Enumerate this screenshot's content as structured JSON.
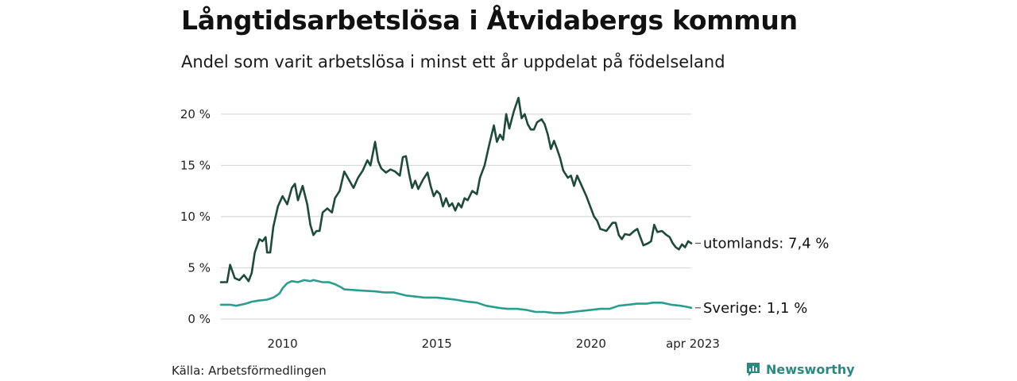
{
  "chart_data": {
    "type": "line",
    "title": "Långtidsarbetslösa i Åtvidabergs kommun",
    "subtitle": "Andel som varit arbetslösa i minst ett år uppdelat på födelseland",
    "xlabel": "",
    "ylabel": "",
    "ylim": [
      0,
      22
    ],
    "yticks": [
      0,
      5,
      10,
      15,
      20
    ],
    "ytick_labels": [
      "0 %",
      "5 %",
      "10 %",
      "15 %",
      "20 %"
    ],
    "xlim": [
      2008.0,
      2023.25
    ],
    "xticks": [
      2010,
      2015,
      2020,
      2023.25
    ],
    "xtick_labels": [
      "2010",
      "2015",
      "2020",
      "apr 2023"
    ],
    "grid": true,
    "series": [
      {
        "name": "utomlands",
        "end_label": "utomlands: 7,4 %",
        "color": "#1d4a3a",
        "points": [
          [
            2008.0,
            3.6
          ],
          [
            2008.2,
            3.6
          ],
          [
            2008.3,
            5.3
          ],
          [
            2008.45,
            4.0
          ],
          [
            2008.6,
            3.8
          ],
          [
            2008.75,
            4.3
          ],
          [
            2008.9,
            3.7
          ],
          [
            2009.0,
            4.5
          ],
          [
            2009.1,
            6.5
          ],
          [
            2009.25,
            7.8
          ],
          [
            2009.35,
            7.6
          ],
          [
            2009.45,
            8.0
          ],
          [
            2009.5,
            6.5
          ],
          [
            2009.6,
            6.5
          ],
          [
            2009.7,
            9.0
          ],
          [
            2009.85,
            11.0
          ],
          [
            2010.0,
            12.0
          ],
          [
            2010.15,
            11.2
          ],
          [
            2010.3,
            12.8
          ],
          [
            2010.4,
            13.2
          ],
          [
            2010.5,
            11.6
          ],
          [
            2010.65,
            13.0
          ],
          [
            2010.8,
            11.2
          ],
          [
            2010.9,
            9.2
          ],
          [
            2011.0,
            8.2
          ],
          [
            2011.1,
            8.6
          ],
          [
            2011.2,
            8.6
          ],
          [
            2011.3,
            10.4
          ],
          [
            2011.45,
            10.8
          ],
          [
            2011.6,
            10.4
          ],
          [
            2011.7,
            11.8
          ],
          [
            2011.85,
            12.5
          ],
          [
            2012.0,
            14.4
          ],
          [
            2012.15,
            13.6
          ],
          [
            2012.3,
            12.8
          ],
          [
            2012.45,
            13.8
          ],
          [
            2012.6,
            14.5
          ],
          [
            2012.75,
            15.5
          ],
          [
            2012.85,
            15.0
          ],
          [
            2013.0,
            17.3
          ],
          [
            2013.1,
            15.4
          ],
          [
            2013.2,
            14.7
          ],
          [
            2013.35,
            14.3
          ],
          [
            2013.5,
            14.6
          ],
          [
            2013.65,
            14.4
          ],
          [
            2013.8,
            14.0
          ],
          [
            2013.9,
            15.8
          ],
          [
            2014.0,
            15.9
          ],
          [
            2014.1,
            14.2
          ],
          [
            2014.2,
            12.8
          ],
          [
            2014.3,
            13.5
          ],
          [
            2014.4,
            12.7
          ],
          [
            2014.55,
            13.6
          ],
          [
            2014.7,
            14.3
          ],
          [
            2014.8,
            13.0
          ],
          [
            2014.9,
            12.0
          ],
          [
            2015.0,
            12.5
          ],
          [
            2015.1,
            12.2
          ],
          [
            2015.2,
            11.0
          ],
          [
            2015.3,
            11.8
          ],
          [
            2015.4,
            11.0
          ],
          [
            2015.5,
            11.3
          ],
          [
            2015.6,
            10.6
          ],
          [
            2015.7,
            11.3
          ],
          [
            2015.8,
            10.9
          ],
          [
            2015.9,
            11.8
          ],
          [
            2016.0,
            11.6
          ],
          [
            2016.15,
            12.5
          ],
          [
            2016.3,
            12.2
          ],
          [
            2016.4,
            13.8
          ],
          [
            2016.55,
            15.0
          ],
          [
            2016.7,
            17.0
          ],
          [
            2016.85,
            18.9
          ],
          [
            2016.95,
            17.3
          ],
          [
            2017.05,
            18.0
          ],
          [
            2017.15,
            17.5
          ],
          [
            2017.25,
            20.0
          ],
          [
            2017.35,
            18.6
          ],
          [
            2017.5,
            20.3
          ],
          [
            2017.65,
            21.6
          ],
          [
            2017.75,
            19.6
          ],
          [
            2017.85,
            20.0
          ],
          [
            2017.95,
            19.0
          ],
          [
            2018.05,
            18.5
          ],
          [
            2018.15,
            18.5
          ],
          [
            2018.25,
            19.2
          ],
          [
            2018.4,
            19.5
          ],
          [
            2018.5,
            19.0
          ],
          [
            2018.6,
            18.0
          ],
          [
            2018.7,
            16.6
          ],
          [
            2018.8,
            17.4
          ],
          [
            2018.9,
            16.6
          ],
          [
            2019.0,
            15.7
          ],
          [
            2019.1,
            14.5
          ],
          [
            2019.25,
            13.8
          ],
          [
            2019.35,
            14.0
          ],
          [
            2019.45,
            13.0
          ],
          [
            2019.55,
            14.0
          ],
          [
            2019.7,
            13.0
          ],
          [
            2019.85,
            12.0
          ],
          [
            2020.0,
            10.8
          ],
          [
            2020.1,
            10.0
          ],
          [
            2020.2,
            9.6
          ],
          [
            2020.3,
            8.8
          ],
          [
            2020.4,
            8.7
          ],
          [
            2020.5,
            8.6
          ],
          [
            2020.6,
            9.0
          ],
          [
            2020.7,
            9.4
          ],
          [
            2020.8,
            9.4
          ],
          [
            2020.9,
            8.2
          ],
          [
            2021.0,
            7.8
          ],
          [
            2021.1,
            8.3
          ],
          [
            2021.25,
            8.2
          ],
          [
            2021.4,
            8.6
          ],
          [
            2021.5,
            8.8
          ],
          [
            2021.6,
            8.0
          ],
          [
            2021.7,
            7.2
          ],
          [
            2021.85,
            7.4
          ],
          [
            2021.95,
            7.6
          ],
          [
            2022.05,
            9.2
          ],
          [
            2022.15,
            8.5
          ],
          [
            2022.3,
            8.6
          ],
          [
            2022.45,
            8.2
          ],
          [
            2022.55,
            8.0
          ],
          [
            2022.65,
            7.4
          ],
          [
            2022.75,
            7.0
          ],
          [
            2022.85,
            6.8
          ],
          [
            2022.95,
            7.3
          ],
          [
            2023.05,
            7.0
          ],
          [
            2023.15,
            7.6
          ],
          [
            2023.25,
            7.4
          ]
        ]
      },
      {
        "name": "Sverige",
        "end_label": "Sverige: 1,1 %",
        "color": "#2a9d8f",
        "points": [
          [
            2008.0,
            1.4
          ],
          [
            2008.3,
            1.4
          ],
          [
            2008.5,
            1.3
          ],
          [
            2008.8,
            1.5
          ],
          [
            2009.0,
            1.7
          ],
          [
            2009.2,
            1.8
          ],
          [
            2009.5,
            1.9
          ],
          [
            2009.7,
            2.1
          ],
          [
            2009.9,
            2.5
          ],
          [
            2010.0,
            3.0
          ],
          [
            2010.15,
            3.5
          ],
          [
            2010.3,
            3.7
          ],
          [
            2010.5,
            3.6
          ],
          [
            2010.7,
            3.8
          ],
          [
            2010.9,
            3.7
          ],
          [
            2011.0,
            3.8
          ],
          [
            2011.3,
            3.6
          ],
          [
            2011.5,
            3.6
          ],
          [
            2011.7,
            3.4
          ],
          [
            2011.9,
            3.1
          ],
          [
            2012.0,
            2.9
          ],
          [
            2012.5,
            2.8
          ],
          [
            2013.0,
            2.7
          ],
          [
            2013.3,
            2.6
          ],
          [
            2013.6,
            2.6
          ],
          [
            2014.0,
            2.3
          ],
          [
            2014.3,
            2.2
          ],
          [
            2014.6,
            2.1
          ],
          [
            2015.0,
            2.1
          ],
          [
            2015.3,
            2.0
          ],
          [
            2015.6,
            1.9
          ],
          [
            2016.0,
            1.7
          ],
          [
            2016.3,
            1.6
          ],
          [
            2016.6,
            1.3
          ],
          [
            2017.0,
            1.1
          ],
          [
            2017.3,
            1.0
          ],
          [
            2017.6,
            1.0
          ],
          [
            2017.9,
            0.9
          ],
          [
            2018.2,
            0.7
          ],
          [
            2018.5,
            0.7
          ],
          [
            2018.8,
            0.6
          ],
          [
            2019.1,
            0.6
          ],
          [
            2019.4,
            0.7
          ],
          [
            2019.7,
            0.8
          ],
          [
            2020.0,
            0.9
          ],
          [
            2020.3,
            1.0
          ],
          [
            2020.6,
            1.0
          ],
          [
            2020.9,
            1.3
          ],
          [
            2021.2,
            1.4
          ],
          [
            2021.5,
            1.5
          ],
          [
            2021.8,
            1.5
          ],
          [
            2022.0,
            1.6
          ],
          [
            2022.3,
            1.6
          ],
          [
            2022.6,
            1.4
          ],
          [
            2022.9,
            1.3
          ],
          [
            2023.1,
            1.2
          ],
          [
            2023.25,
            1.1
          ]
        ]
      }
    ]
  },
  "source": "Källa: Arbetsförmedlingen",
  "brand": {
    "name": "Newsworthy",
    "icon": "newsworthy-logo-icon",
    "color": "#2a8a80"
  }
}
